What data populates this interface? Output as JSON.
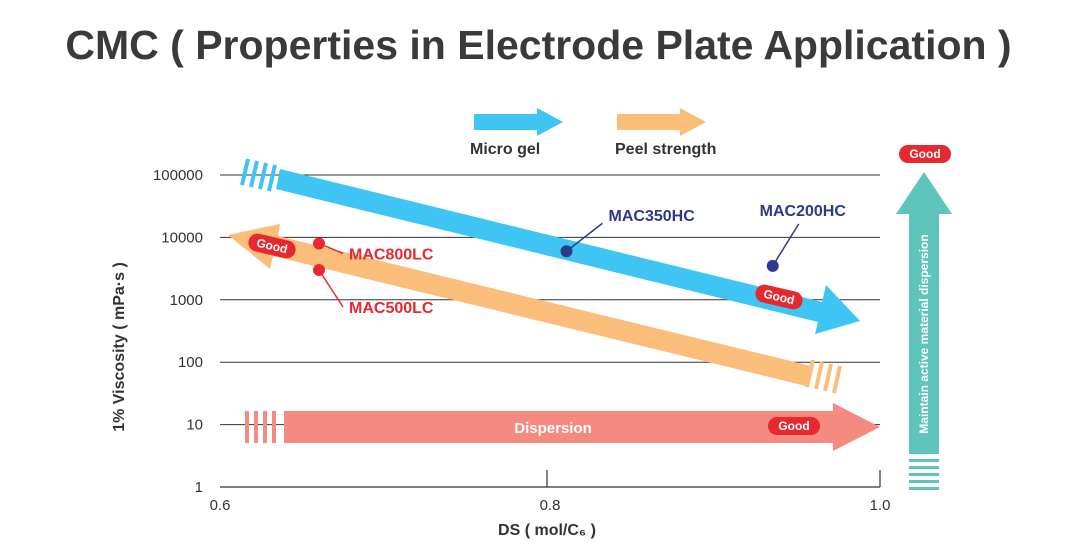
{
  "title": "CMC ( Properties in Electrode Plate Application )",
  "legend": {
    "micro_gel": "Micro gel",
    "peel_strength": "Peel strength"
  },
  "colors": {
    "micro_gel": "#3ec5f3",
    "peel_strength": "#fbbd7a",
    "dispersion": "#f58a80",
    "side": "#5ec4bc",
    "good": "#e8282f",
    "point_red": "#e8282f",
    "point_blue": "#2b3a8c"
  },
  "good_label": "Good",
  "dispersion_label": "Dispersion",
  "side_label": "Maintain  active  material  dispersion",
  "chart_data": {
    "type": "scatter",
    "xlabel": "DS ( mol/C₆ )",
    "ylabel": "1% Viscosity ( mPa·s )",
    "xlim": [
      0.6,
      1.0
    ],
    "ylim": [
      1,
      100000
    ],
    "y_scale": "log",
    "x_ticks": [
      "0.6",
      "0.8",
      "1.0"
    ],
    "y_ticks": [
      "100000",
      "10000",
      "1000",
      "100",
      "10",
      "1"
    ],
    "y_tick_values": [
      100000,
      10000,
      1000,
      100,
      10,
      1
    ],
    "grid": "horizontal",
    "points": [
      {
        "name": "MAC800LC",
        "x": 0.66,
        "y": 8000,
        "color": "red"
      },
      {
        "name": "MAC500LC",
        "x": 0.66,
        "y": 3000,
        "color": "red"
      },
      {
        "name": "MAC350HC",
        "x": 0.81,
        "y": 6000,
        "color": "blue"
      },
      {
        "name": "MAC200HC",
        "x": 0.935,
        "y": 3500,
        "color": "blue"
      }
    ],
    "point_labels": [
      "MAC800LC",
      "MAC500LC",
      "MAC350HC",
      "MAC200HC"
    ]
  }
}
